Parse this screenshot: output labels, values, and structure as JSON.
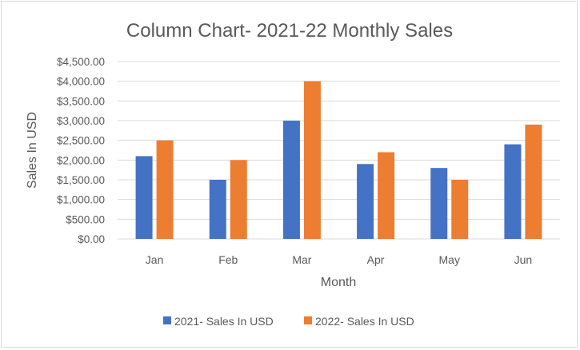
{
  "chart_data": {
    "type": "bar",
    "title": "Column Chart- 2021-22 Monthly Sales",
    "xlabel": "Month",
    "ylabel": "Sales In USD",
    "categories": [
      "Jan",
      "Feb",
      "Mar",
      "Apr",
      "May",
      "Jun"
    ],
    "series": [
      {
        "name": "2021- Sales In USD",
        "color": "#4472c4",
        "values": [
          2100,
          1500,
          3000,
          1900,
          1800,
          2400
        ]
      },
      {
        "name": "2022- Sales In USD",
        "color": "#ed7d31",
        "values": [
          2500,
          2000,
          4000,
          2200,
          1500,
          2900
        ]
      }
    ],
    "ylim": [
      0,
      4500
    ],
    "ytick_step": 500,
    "ytick_labels": [
      "$0.00",
      "$500.00",
      "$1,000.00",
      "$1,500.00",
      "$2,000.00",
      "$2,500.00",
      "$3,000.00",
      "$3,500.00",
      "$4,000.00",
      "$4,500.00"
    ],
    "grid": true,
    "legend_position": "bottom"
  }
}
